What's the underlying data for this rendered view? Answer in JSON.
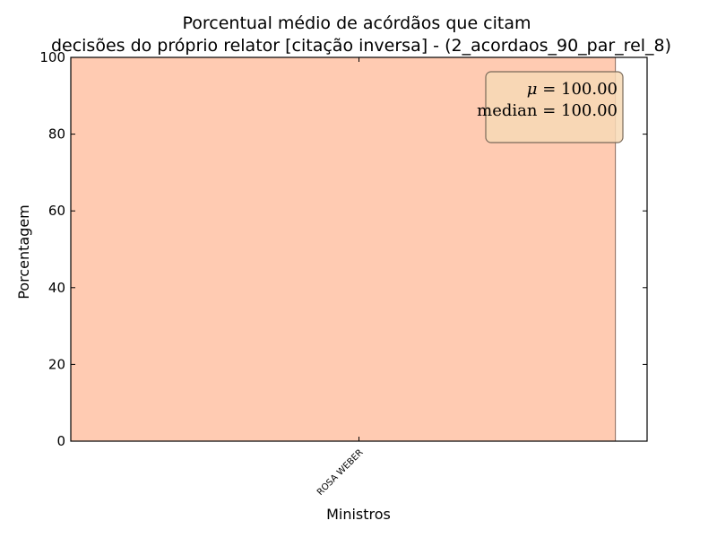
{
  "chart_data": {
    "type": "bar",
    "title": "Porcentual médio de acórdãos que citam decisões do próprio relator [citação inversa] - (2_acordaos_90_par_rel_8)",
    "title_lines": [
      "Porcentual médio de acórdãos que citam",
      "decisões do próprio relator [citação inversa] - (2_acordaos_90_par_rel_8)"
    ],
    "xlabel": "Ministros",
    "ylabel": "Porcentagem",
    "categories": [
      "ROSA WEBER"
    ],
    "values": [
      100
    ],
    "ylim": [
      0,
      100
    ],
    "yticks": [
      0,
      20,
      40,
      60,
      80,
      100
    ],
    "grid": false,
    "bar_color": "#ffcbb2",
    "bar_edge_color": "#8a6a5e",
    "stats_box": {
      "placement": "top-right",
      "mean_symbol": "μ",
      "mean_value": "100.00",
      "median_label": "median",
      "median_value": "100.00",
      "fill_color": "#f7d9b5",
      "edge_color": "#7a6a5a"
    }
  }
}
